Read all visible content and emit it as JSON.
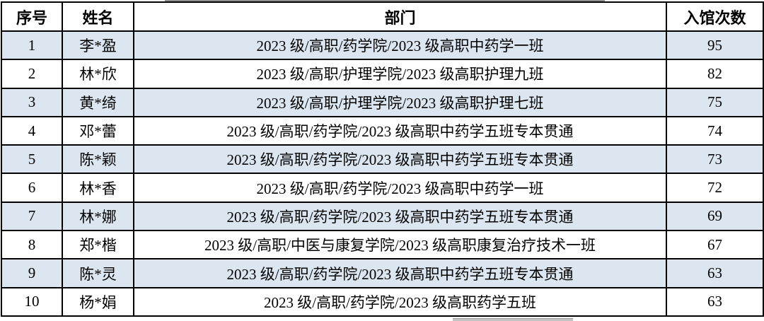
{
  "table": {
    "headers": {
      "seq": "序号",
      "name": "姓名",
      "dept": "部门",
      "count": "入馆次数"
    },
    "rows": [
      {
        "seq": "1",
        "name": "李*盈",
        "dept": "2023 级/高职/药学院/2023 级高职中药学一班",
        "count": "95"
      },
      {
        "seq": "2",
        "name": "林*欣",
        "dept": "2023 级/高职/护理学院/2023 级高职护理九班",
        "count": "82"
      },
      {
        "seq": "3",
        "name": "黄*绮",
        "dept": "2023 级/高职/护理学院/2023 级高职护理七班",
        "count": "75"
      },
      {
        "seq": "4",
        "name": "邓*蕾",
        "dept": "2023 级/高职/药学院/2023 级高职中药学五班专本贯通",
        "count": "74"
      },
      {
        "seq": "5",
        "name": "陈*颖",
        "dept": "2023 级/高职/药学院/2023 级高职中药学五班专本贯通",
        "count": "73"
      },
      {
        "seq": "6",
        "name": "林*香",
        "dept": "2023 级/高职/药学院/2023 级高职中药学一班",
        "count": "72"
      },
      {
        "seq": "7",
        "name": "林*娜",
        "dept": "2023 级/高职/药学院/2023 级高职中药学五班专本贯通",
        "count": "69"
      },
      {
        "seq": "8",
        "name": "郑*楷",
        "dept": "2023 级/高职/中医与康复学院/2023 级高职康复治疗技术一班",
        "count": "67"
      },
      {
        "seq": "9",
        "name": "陈*灵",
        "dept": "2023 级/高职/药学院/2023 级高职中药学五班专本贯通",
        "count": "63"
      },
      {
        "seq": "10",
        "name": "杨*娟",
        "dept": "2023 级/高职/药学院/2023 级高职药学五班",
        "count": "63"
      }
    ]
  },
  "colors": {
    "row_alt_background": "#DCE6F1",
    "border": "#000000",
    "text": "#000000"
  }
}
